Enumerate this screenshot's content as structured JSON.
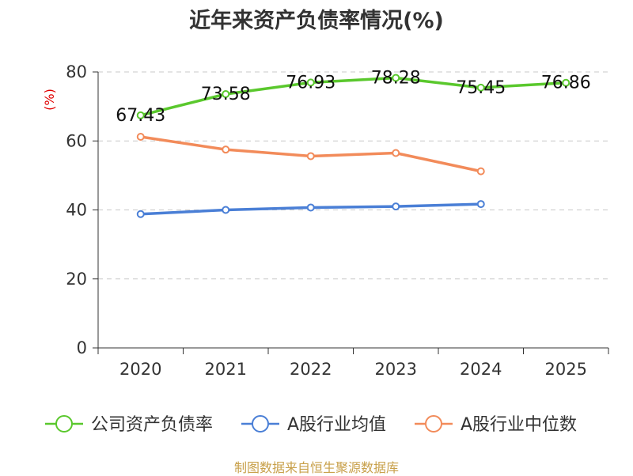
{
  "chart_data": {
    "type": "line",
    "title": "近年来资产负债率情况(%)",
    "ylabel": "(%)",
    "xlabel": "",
    "ylim": [
      0,
      80
    ],
    "yticks": [
      0,
      20,
      40,
      60,
      80
    ],
    "categories": [
      "2020",
      "2021",
      "2022",
      "2023",
      "2024",
      "2025"
    ],
    "grid": true,
    "legend_position": "bottom",
    "series": [
      {
        "name": "公司资产负债率",
        "color": "#5ac82d",
        "values": [
          67.43,
          73.58,
          76.93,
          78.28,
          75.45,
          76.86
        ],
        "labels": [
          "67.43",
          "73.58",
          "76.93",
          "78.28",
          "75.45",
          "76.86"
        ]
      },
      {
        "name": "A股行业均值",
        "color": "#4a7fd6",
        "values": [
          38.8,
          40.0,
          40.7,
          41.0,
          41.7,
          null
        ]
      },
      {
        "name": "A股行业中位数",
        "color": "#f28b5a",
        "values": [
          61.2,
          57.5,
          55.6,
          56.5,
          51.2,
          null
        ]
      }
    ]
  },
  "footer": {
    "source": "制图数据来自恒生聚源数据库"
  }
}
